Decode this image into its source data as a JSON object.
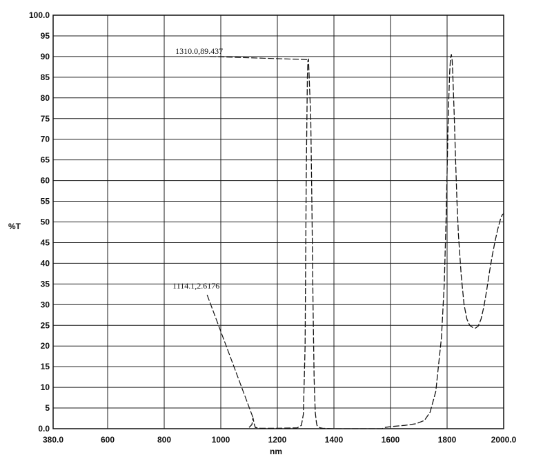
{
  "chart_data": {
    "type": "line",
    "title": "",
    "xlabel": "nm",
    "ylabel": "%T",
    "xlim": [
      380.0,
      2000.0
    ],
    "ylim": [
      0.0,
      100.0
    ],
    "grid": true,
    "x_ticks": [
      380.0,
      600,
      800,
      1000,
      1200,
      1400,
      1600,
      1800,
      2000.0
    ],
    "x_tick_labels": [
      "380.0",
      "600",
      "800",
      "1000",
      "1200",
      "1400",
      "1600",
      "1800",
      "2000.0"
    ],
    "y_ticks": [
      0,
      5,
      10,
      15,
      20,
      25,
      30,
      35,
      40,
      45,
      50,
      55,
      60,
      65,
      70,
      75,
      80,
      85,
      90,
      95,
      100
    ],
    "y_tick_labels": [
      "0.0",
      "5",
      "10",
      "15",
      "20",
      "25",
      "30",
      "35",
      "40",
      "45",
      "50",
      "55",
      "60",
      "65",
      "70",
      "75",
      "80",
      "85",
      "90",
      "95",
      "100.0"
    ],
    "series": [
      {
        "line_style": "dashed",
        "color": "#111111",
        "x": [
          1100,
          1110,
          1114,
          1118,
          1122,
          1140,
          1200,
          1270,
          1285,
          1292,
          1298,
          1302,
          1306,
          1308,
          1310,
          1318,
          1322,
          1326,
          1330,
          1334,
          1338,
          1340,
          1346,
          1352,
          1360,
          1400,
          1500,
          1570,
          1580,
          1600,
          1650,
          1690,
          1720,
          1740,
          1760,
          1780,
          1790,
          1796,
          1800,
          1803,
          1806,
          1809,
          1812,
          1815,
          1818,
          1820,
          1825,
          1830,
          1835,
          1840,
          1850,
          1860,
          1870,
          1880,
          1890,
          1900,
          1910,
          1920,
          1930,
          1940,
          1950,
          1960,
          1970,
          1980,
          1990,
          1995,
          2000
        ],
        "y": [
          0.3,
          1.0,
          2.6,
          1.2,
          0.3,
          0.1,
          0.1,
          0.2,
          0.8,
          3.5,
          20.0,
          60.0,
          85.0,
          89.0,
          89.4,
          75.0,
          55.0,
          30.0,
          12.0,
          4.0,
          1.5,
          0.8,
          0.4,
          0.2,
          0.1,
          0.0,
          0.0,
          0.0,
          0.3,
          0.5,
          0.8,
          1.2,
          2.0,
          4.0,
          9.0,
          22.0,
          35.0,
          50.0,
          62.0,
          72.0,
          80.0,
          86.0,
          89.5,
          90.5,
          89.0,
          86.0,
          76.0,
          65.0,
          55.0,
          47.0,
          37.0,
          30.0,
          26.5,
          25.0,
          24.5,
          24.3,
          24.8,
          26.5,
          29.5,
          33.5,
          38.0,
          42.0,
          45.5,
          48.5,
          51.0,
          51.7,
          52.0
        ]
      }
    ],
    "annotations": [
      {
        "text": "1310.0,89.437",
        "point": [
          1310.0,
          89.437
        ],
        "label_at": [
          937,
          90.0
        ]
      },
      {
        "text": "1114.1,2.6176",
        "point": [
          1114.1,
          2.6176
        ],
        "label_at": [
          937,
          33.7
        ]
      }
    ]
  }
}
